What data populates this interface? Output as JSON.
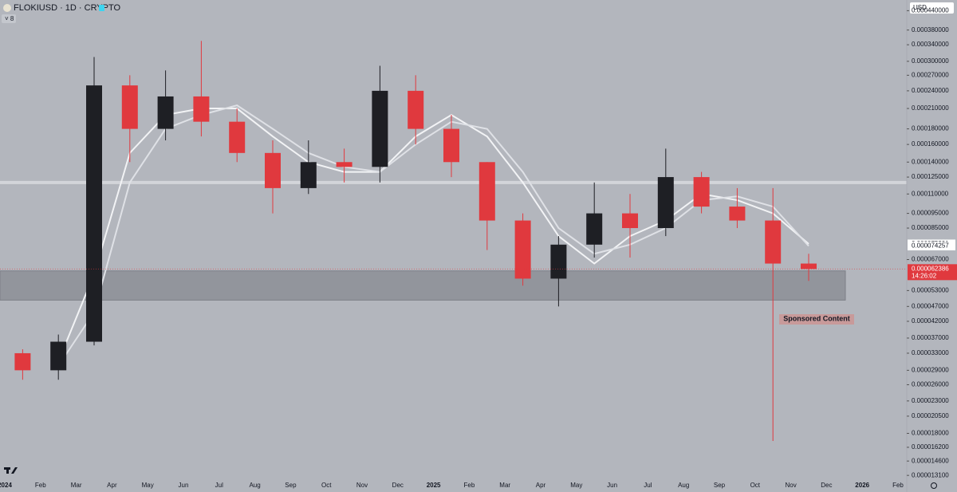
{
  "chart_data": {
    "type": "candlestick",
    "title": "FLOKIUSD · 1D · CRYPTO",
    "indicator_count": "8",
    "currency": "USD",
    "categories": [
      "2024",
      "Feb",
      "Mar",
      "Apr",
      "May",
      "Jun",
      "Jul",
      "Aug",
      "Sep",
      "Oct",
      "Nov",
      "Dec",
      "2025",
      "Feb",
      "Mar",
      "Apr",
      "May",
      "Jun",
      "Jul",
      "Aug",
      "Sep",
      "Oct",
      "Nov",
      "Dec",
      "2026",
      "Feb"
    ],
    "open": [
      3.3e-05,
      2.9e-05,
      3.6e-05,
      0.00025,
      0.00018,
      0.00023,
      0.00019,
      0.00015,
      0.000115,
      0.00014,
      0.000135,
      0.00024,
      0.00018,
      0.00014,
      9e-05,
      5.8e-05,
      7.5e-05,
      9.5e-05,
      8.5e-05,
      0.000125,
      0.0001,
      9e-05,
      6.5e-05,
      null,
      null,
      null
    ],
    "high": [
      3.4e-05,
      3.8e-05,
      0.00031,
      0.00027,
      0.00028,
      0.00035,
      0.00021,
      0.000165,
      0.000165,
      0.000155,
      0.00029,
      0.00027,
      0.0002,
      0.00014,
      9.5e-05,
      8e-05,
      0.00012,
      0.00011,
      0.000155,
      0.00013,
      0.000115,
      0.000115,
      7e-05,
      null,
      null,
      null
    ],
    "low": [
      2.7e-05,
      2.7e-05,
      3.5e-05,
      0.00014,
      0.000165,
      0.00017,
      0.00014,
      9.5e-05,
      0.00011,
      0.00012,
      0.00012,
      0.00016,
      0.000125,
      7.2e-05,
      5.5e-05,
      4.7e-05,
      6.8e-05,
      6.8e-05,
      8e-05,
      9.5e-05,
      8.5e-05,
      1.7e-05,
      5.7e-05,
      null,
      null,
      null
    ],
    "close": [
      2.9e-05,
      3.6e-05,
      0.00025,
      0.00018,
      0.00023,
      0.00019,
      0.00015,
      0.000115,
      0.00014,
      0.000135,
      0.00024,
      0.00018,
      0.00014,
      9e-05,
      5.8e-05,
      7.5e-05,
      9.5e-05,
      8.5e-05,
      0.000125,
      0.0001,
      9e-05,
      6.5e-05,
      6.2386e-05,
      null,
      null,
      null
    ],
    "up_color": "#1e1f24",
    "down_color": "#e0393e",
    "moving_averages": [
      {
        "color": "#f2f3f5",
        "values": [
          null,
          3.1e-05,
          6e-05,
          0.00015,
          0.0002,
          0.00021,
          0.00021,
          0.00017,
          0.00014,
          0.00013,
          0.00013,
          0.00017,
          0.0002,
          0.00017,
          0.00012,
          8e-05,
          6.5e-05,
          8e-05,
          9e-05,
          0.00011,
          0.000105,
          9.5e-05,
          7.5391e-05,
          null,
          null,
          null
        ]
      },
      {
        "color": "#dfe1e6",
        "values": [
          null,
          3e-05,
          4.5e-05,
          0.00012,
          0.00018,
          0.0002,
          0.000215,
          0.00018,
          0.00015,
          0.000135,
          0.00013,
          0.00016,
          0.00019,
          0.00018,
          0.00013,
          8.5e-05,
          7e-05,
          7.5e-05,
          8.5e-05,
          0.000105,
          0.000108,
          0.0001,
          7.4257e-05,
          null,
          null,
          null
        ]
      }
    ],
    "resistance_level": 0.00012,
    "support_zone": [
      4.93e-05,
      6.15e-05
    ],
    "countdown": "14:26:02",
    "annotation": "Sponsored Content",
    "log_scale": true,
    "ylim": [
      1.28e-05,
      0.00046
    ],
    "yticks": [
      {
        "value": 0.00044,
        "label": "0.000440000"
      },
      {
        "value": 0.00038,
        "label": "0.000380000"
      },
      {
        "value": 0.00034,
        "label": "0.000340000"
      },
      {
        "value": 0.0003,
        "label": "0.000300000"
      },
      {
        "value": 0.00027,
        "label": "0.000270000"
      },
      {
        "value": 0.00024,
        "label": "0.000240000"
      },
      {
        "value": 0.00021,
        "label": "0.000210000"
      },
      {
        "value": 0.00018,
        "label": "0.000180000"
      },
      {
        "value": 0.00016,
        "label": "0.000160000"
      },
      {
        "value": 0.00014,
        "label": "0.000140000"
      },
      {
        "value": 0.000125,
        "label": "0.000125000"
      },
      {
        "value": 0.00011,
        "label": "0.000110000"
      },
      {
        "value": 9.5e-05,
        "label": "0.000095000"
      },
      {
        "value": 8.5e-05,
        "label": "0.000085000"
      },
      {
        "value": 6.7e-05,
        "label": "0.000067000"
      },
      {
        "value": 5.3e-05,
        "label": "0.000053000"
      },
      {
        "value": 4.7e-05,
        "label": "0.000047000"
      },
      {
        "value": 4.2e-05,
        "label": "0.000042000"
      },
      {
        "value": 3.7e-05,
        "label": "0.000037000"
      },
      {
        "value": 3.3e-05,
        "label": "0.000033000"
      },
      {
        "value": 2.9e-05,
        "label": "0.000029000"
      },
      {
        "value": 2.6e-05,
        "label": "0.000026000"
      },
      {
        "value": 2.3e-05,
        "label": "0.000023000"
      },
      {
        "value": 2.05e-05,
        "label": "0.000020500"
      },
      {
        "value": 1.8e-05,
        "label": "0.000018000"
      },
      {
        "value": 1.62e-05,
        "label": "0.000016200"
      },
      {
        "value": 1.46e-05,
        "label": "0.000014600"
      },
      {
        "value": 1.31e-05,
        "label": "0.000013100"
      }
    ]
  }
}
